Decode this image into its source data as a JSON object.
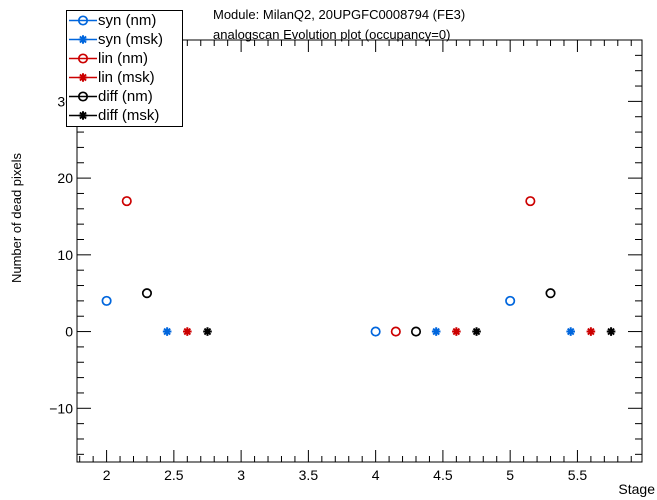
{
  "title": {
    "line1": "Module: MilanQ2, 20UPGFC0008794 (FE3)",
    "line2": "analogscan Evolution plot (occupancy=0)"
  },
  "chart_data": {
    "type": "scatter",
    "xlabel": "Stage",
    "ylabel": "Number of dead pixels",
    "xlim": [
      1.78,
      5.98
    ],
    "ylim": [
      -17,
      38
    ],
    "xticks": [
      2,
      2.5,
      3,
      3.5,
      4,
      4.5,
      5,
      5.5
    ],
    "xtick_labels": [
      "2",
      "2.5",
      "3",
      "3.5",
      "4",
      "4.5",
      "5",
      "5.5"
    ],
    "yticks": [
      -10,
      0,
      10,
      20,
      30
    ],
    "ytick_labels": [
      "−10",
      "0",
      "10",
      "20",
      "30"
    ],
    "grid": false,
    "legend_position": "top-left",
    "series": [
      {
        "name": "syn (nm)",
        "color": "#0066dd",
        "marker": "open-circle",
        "points": [
          [
            2.0,
            4
          ],
          [
            4.0,
            0
          ],
          [
            5.0,
            4
          ]
        ]
      },
      {
        "name": "syn (msk)",
        "color": "#0066dd",
        "marker": "star",
        "points": [
          [
            2.45,
            0
          ],
          [
            4.45,
            0
          ],
          [
            5.45,
            0
          ]
        ]
      },
      {
        "name": "lin (nm)",
        "color": "#cc0000",
        "marker": "open-circle",
        "points": [
          [
            2.15,
            17
          ],
          [
            4.15,
            0
          ],
          [
            5.15,
            17
          ]
        ]
      },
      {
        "name": "lin (msk)",
        "color": "#cc0000",
        "marker": "star",
        "points": [
          [
            2.6,
            0
          ],
          [
            4.6,
            0
          ],
          [
            5.6,
            0
          ]
        ]
      },
      {
        "name": "diff (nm)",
        "color": "#000000",
        "marker": "open-circle",
        "points": [
          [
            2.3,
            5
          ],
          [
            4.3,
            0
          ],
          [
            5.3,
            5
          ]
        ]
      },
      {
        "name": "diff (msk)",
        "color": "#000000",
        "marker": "star",
        "points": [
          [
            2.75,
            0
          ],
          [
            4.75,
            0
          ],
          [
            5.75,
            0
          ]
        ]
      }
    ]
  }
}
